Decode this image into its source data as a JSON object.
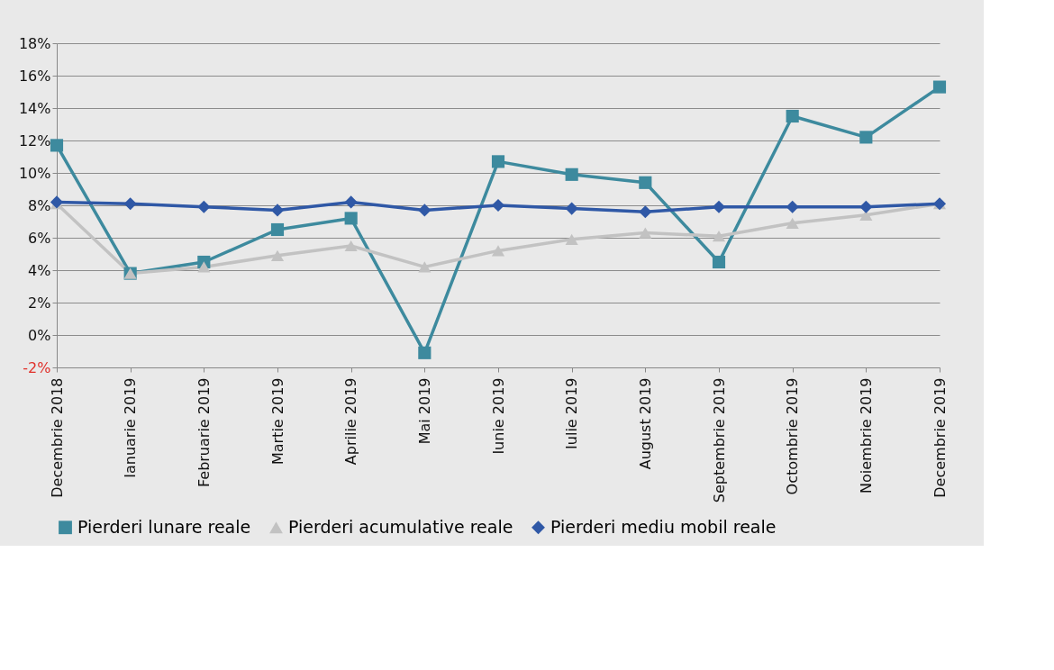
{
  "chart_data": {
    "type": "line",
    "categories": [
      "Decembrie 2018",
      "Ianuarie 2019",
      "Februarie 2019",
      "Martie 2019",
      "Aprilie 2019",
      "Mai 2019",
      "Iunie 2019",
      "Iulie 2019",
      "August 2019",
      "Septembrie 2019",
      "Octombrie 2019",
      "Noiembrie 2019",
      "Decembrie 2019"
    ],
    "series": [
      {
        "name": "Pierderi lunare reale",
        "color": "#3d8a9e",
        "marker": "square",
        "values": [
          11.7,
          3.8,
          4.5,
          6.5,
          7.2,
          -1.1,
          10.7,
          9.9,
          9.4,
          4.5,
          13.5,
          12.2,
          15.3
        ]
      },
      {
        "name": "Pierderi acumulative reale",
        "color": "#c2c2c2",
        "marker": "triangle",
        "values": [
          8.1,
          3.8,
          4.2,
          4.9,
          5.5,
          4.2,
          5.2,
          5.9,
          6.3,
          6.1,
          6.9,
          7.4,
          8.1
        ]
      },
      {
        "name": "Pierderi mediu mobil reale",
        "color": "#2f58a6",
        "marker": "diamond",
        "values": [
          8.2,
          8.1,
          7.9,
          7.7,
          8.2,
          7.7,
          8.0,
          7.8,
          7.6,
          7.9,
          7.9,
          7.9,
          8.1
        ]
      }
    ],
    "ylim": [
      -2,
      18
    ],
    "yticks": [
      {
        "value": -2,
        "label": "-2%"
      },
      {
        "value": 0,
        "label": "0%"
      },
      {
        "value": 2,
        "label": "2%"
      },
      {
        "value": 4,
        "label": "4%"
      },
      {
        "value": 6,
        "label": "6%"
      },
      {
        "value": 8,
        "label": "8%"
      },
      {
        "value": 10,
        "label": "10%"
      },
      {
        "value": 12,
        "label": "12%"
      },
      {
        "value": 14,
        "label": "14%"
      },
      {
        "value": 16,
        "label": "16%"
      },
      {
        "value": 18,
        "label": "18%"
      }
    ],
    "grid": "y",
    "legend": "bottom",
    "line_style": "solid"
  }
}
